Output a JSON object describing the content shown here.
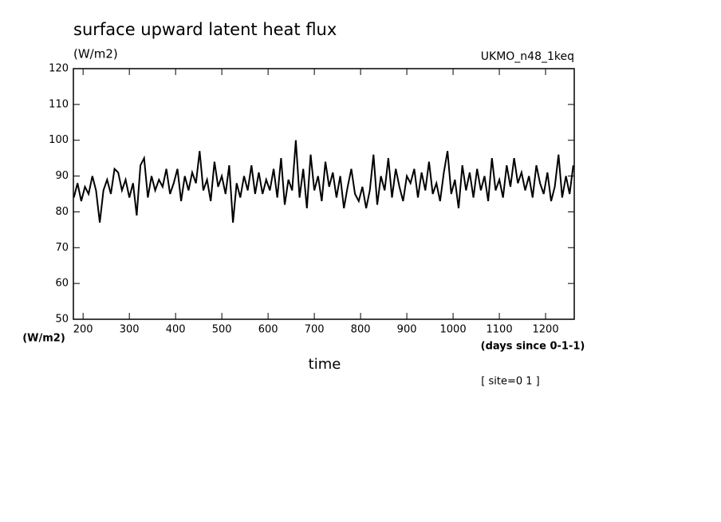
{
  "chart_data": {
    "type": "line",
    "title": "surface upward latent heat flux",
    "y_unit_top": "(W/m2)",
    "model_label": "UKMO_n48_1keq",
    "y_unit_bottom": "(W/m2)",
    "x_unit": "(days since 0-1-1)",
    "x_label": "time",
    "annotation": "[ site=0 1 ]",
    "xlim": [
      179,
      1262
    ],
    "ylim": [
      50,
      120
    ],
    "xticks": [
      200,
      300,
      400,
      500,
      600,
      700,
      800,
      900,
      1000,
      1100,
      1200
    ],
    "yticks": [
      50,
      60,
      70,
      80,
      90,
      100,
      110,
      120
    ],
    "series": [
      {
        "color": "#000000",
        "x": [
          180,
          188,
          196,
          204,
          212,
          220,
          228,
          236,
          244,
          252,
          260,
          268,
          276,
          284,
          292,
          300,
          308,
          316,
          324,
          332,
          340,
          348,
          356,
          364,
          372,
          380,
          388,
          396,
          404,
          412,
          420,
          428,
          436,
          444,
          452,
          460,
          468,
          476,
          484,
          492,
          500,
          508,
          516,
          524,
          532,
          540,
          548,
          556,
          564,
          572,
          580,
          588,
          596,
          604,
          612,
          620,
          628,
          636,
          644,
          652,
          660,
          668,
          676,
          684,
          692,
          700,
          708,
          716,
          724,
          732,
          740,
          748,
          756,
          764,
          772,
          780,
          788,
          796,
          804,
          812,
          820,
          828,
          836,
          844,
          852,
          860,
          868,
          876,
          884,
          892,
          900,
          908,
          916,
          924,
          932,
          940,
          948,
          956,
          964,
          972,
          980,
          988,
          996,
          1004,
          1012,
          1020,
          1028,
          1036,
          1044,
          1052,
          1060,
          1068,
          1076,
          1084,
          1092,
          1100,
          1108,
          1116,
          1124,
          1132,
          1140,
          1148,
          1156,
          1164,
          1172,
          1180,
          1188,
          1196,
          1204,
          1212,
          1220,
          1228,
          1236,
          1244,
          1252,
          1260
        ],
        "values": [
          84,
          88,
          83,
          87,
          85,
          90,
          86,
          77,
          86,
          89,
          85,
          92,
          91,
          86,
          89,
          84,
          88,
          79,
          93,
          95,
          84,
          90,
          86,
          89,
          87,
          92,
          85,
          88,
          92,
          83,
          90,
          86,
          91,
          88,
          97,
          86,
          89,
          83,
          94,
          87,
          90,
          85,
          93,
          77,
          88,
          84,
          90,
          86,
          93,
          85,
          91,
          85,
          89,
          86,
          92,
          84,
          95,
          82,
          89,
          86,
          100,
          84,
          92,
          81,
          96,
          86,
          90,
          83,
          94,
          87,
          91,
          84,
          90,
          81,
          87,
          92,
          85,
          83,
          87,
          81,
          86,
          96,
          82,
          90,
          86,
          95,
          84,
          92,
          87,
          83,
          90,
          88,
          92,
          84,
          91,
          86,
          94,
          85,
          88,
          83,
          91,
          97,
          85,
          89,
          81,
          93,
          86,
          91,
          84,
          92,
          86,
          90,
          83,
          95,
          86,
          89,
          84,
          93,
          87,
          95,
          88,
          91,
          86,
          90,
          84,
          93,
          88,
          85,
          91,
          83,
          87,
          96,
          84,
          90,
          85,
          93
        ]
      }
    ]
  }
}
